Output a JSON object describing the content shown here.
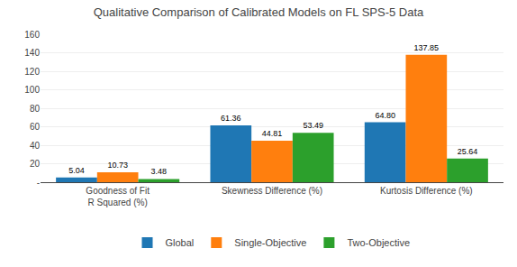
{
  "chart_data": {
    "type": "bar",
    "title": "Qualitative Comparison of Calibrated Models on FL SPS-5 Data",
    "categories": [
      "Goodness of Fit\nR Squared (%)",
      "Skewness Difference (%)",
      "Kurtosis Difference (%)"
    ],
    "series": [
      {
        "name": "Global",
        "values": [
          5.04,
          61.36,
          64.8
        ],
        "value_labels": [
          "5.04",
          "61.36",
          "64.80"
        ]
      },
      {
        "name": "Single-Objective",
        "values": [
          10.73,
          44.81,
          137.85
        ],
        "value_labels": [
          "10.73",
          "44.81",
          "137.85"
        ]
      },
      {
        "name": "Two-Objective",
        "values": [
          3.48,
          53.49,
          25.64
        ],
        "value_labels": [
          "3.48",
          "53.49",
          "25.64"
        ]
      }
    ],
    "ylim": [
      0,
      160
    ],
    "yticks": [
      {
        "value": 0,
        "label": "-"
      },
      20,
      40,
      60,
      80,
      100,
      120,
      140,
      160
    ],
    "grid": true,
    "legend": "bottom",
    "data_labels": true
  }
}
